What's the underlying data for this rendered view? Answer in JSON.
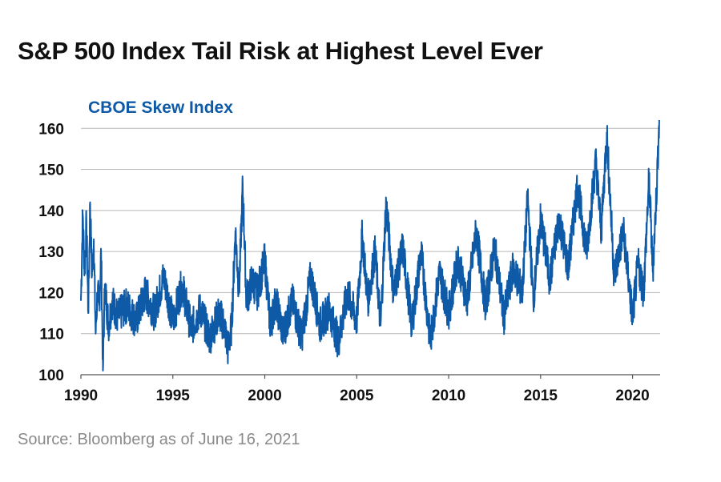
{
  "title": "S&P 500 Index Tail Risk at Highest Level Ever",
  "source": "Source: Bloomberg as of June 16, 2021",
  "colors": {
    "series": "#0e5aa7",
    "grid": "#b9b9b9",
    "text": "#111111",
    "source": "#8a8a8a"
  },
  "chart_data": {
    "type": "line",
    "title": "",
    "xlabel": "",
    "ylabel": "",
    "series_label": "CBOE Skew Index",
    "x_ticks": [
      "1990",
      "1995",
      "2000",
      "2005",
      "2010",
      "2015",
      "2020"
    ],
    "y_ticks": [
      100,
      110,
      120,
      130,
      140,
      150,
      160
    ],
    "xlim": [
      1990,
      2021.5
    ],
    "ylim": [
      100,
      162
    ],
    "grid": "horizontal",
    "series": [
      {
        "name": "CBOE Skew Index",
        "x": [
          1990.0,
          1990.1,
          1990.2,
          1990.3,
          1990.4,
          1990.5,
          1990.6,
          1990.7,
          1990.8,
          1990.9,
          1991.0,
          1991.1,
          1991.2,
          1991.3,
          1991.5,
          1991.7,
          1992.0,
          1992.5,
          1993.0,
          1993.5,
          1994.0,
          1994.5,
          1995.0,
          1995.5,
          1996.0,
          1996.5,
          1997.0,
          1997.5,
          1997.8,
          1998.0,
          1998.2,
          1998.4,
          1998.6,
          1998.8,
          1999.0,
          1999.3,
          1999.6,
          2000.0,
          2000.3,
          2000.6,
          2001.0,
          2001.5,
          2002.0,
          2002.5,
          2003.0,
          2003.5,
          2004.0,
          2004.5,
          2005.0,
          2005.3,
          2005.6,
          2006.0,
          2006.3,
          2006.6,
          2007.0,
          2007.5,
          2008.0,
          2008.5,
          2009.0,
          2009.5,
          2010.0,
          2010.5,
          2011.0,
          2011.5,
          2012.0,
          2012.5,
          2013.0,
          2013.5,
          2014.0,
          2014.3,
          2014.6,
          2015.0,
          2015.5,
          2016.0,
          2016.5,
          2017.0,
          2017.5,
          2018.0,
          2018.3,
          2018.6,
          2019.0,
          2019.5,
          2020.0,
          2020.3,
          2020.6,
          2020.9,
          2021.1,
          2021.3,
          2021.45
        ],
        "y": [
          118,
          139,
          125,
          137,
          115,
          142,
          124,
          133,
          110,
          120,
          117,
          130,
          101,
          122,
          112,
          118,
          114,
          117,
          113,
          120,
          115,
          124,
          113,
          122,
          111,
          116,
          109,
          115,
          112,
          106,
          112,
          135,
          120,
          146,
          118,
          123,
          120,
          128,
          112,
          118,
          110,
          118,
          109,
          124,
          112,
          116,
          108,
          120,
          113,
          134,
          118,
          130,
          112,
          142,
          120,
          131,
          112,
          130,
          108,
          125,
          115,
          128,
          118,
          135,
          117,
          131,
          114,
          126,
          120,
          143,
          118,
          138,
          123,
          138,
          126,
          146,
          130,
          152,
          135,
          159,
          124,
          135,
          114,
          127,
          120,
          148,
          125,
          144,
          162
        ]
      }
    ]
  }
}
